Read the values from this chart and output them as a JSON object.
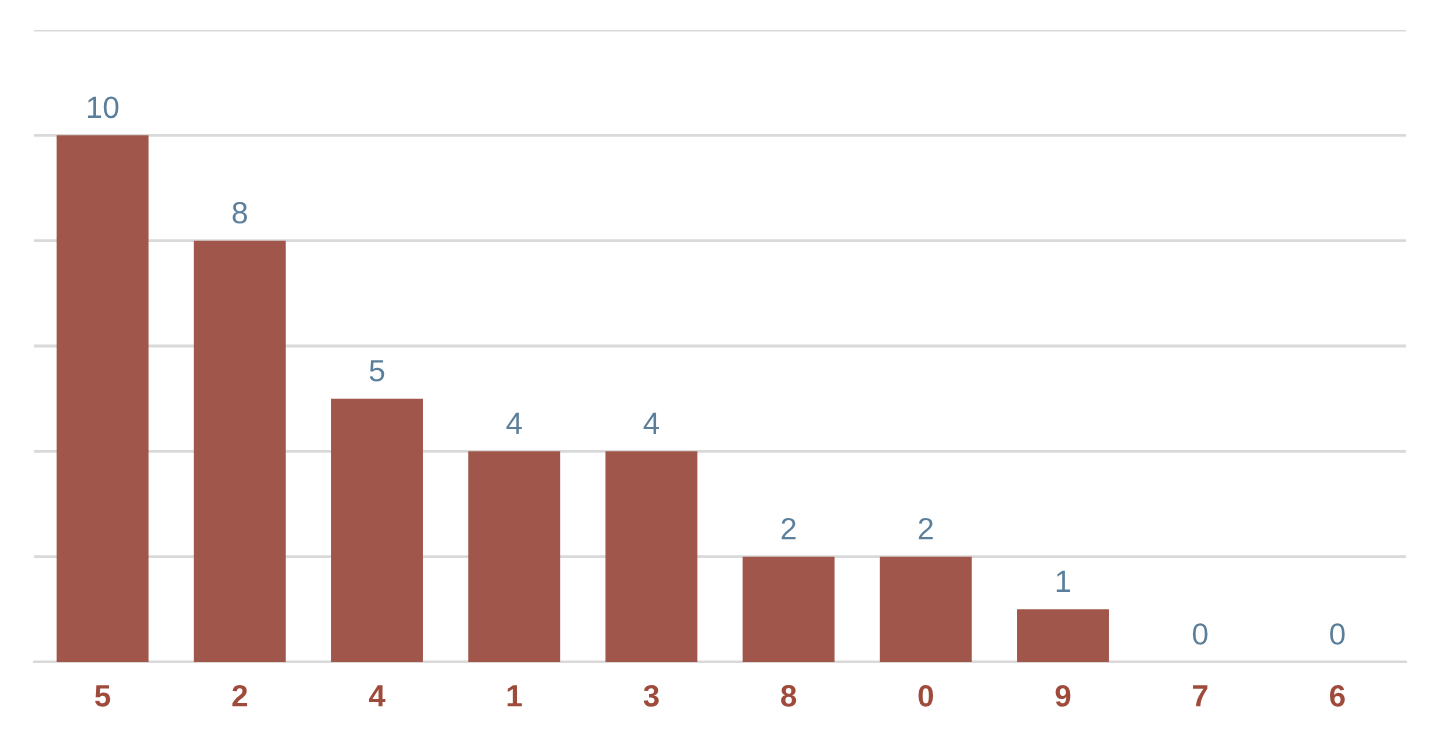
{
  "chart_data": {
    "type": "bar",
    "categories": [
      "5",
      "2",
      "4",
      "1",
      "3",
      "8",
      "0",
      "9",
      "7",
      "6"
    ],
    "values": [
      10,
      8,
      5,
      4,
      4,
      2,
      2,
      1,
      0,
      0
    ],
    "color": "#a0564a",
    "ylim": [
      0,
      12
    ],
    "yticks": [
      {
        "value": 0,
        "label": null
      },
      {
        "value": 2,
        "label": null
      },
      {
        "value": 4,
        "label": null
      },
      {
        "value": 6,
        "label": null
      },
      {
        "value": 8,
        "label": null
      },
      {
        "value": 10,
        "label": null
      },
      {
        "value": 12,
        "label": null
      }
    ],
    "grid": "y",
    "tick_labels": "x",
    "data_labels": true,
    "legend": false
  }
}
